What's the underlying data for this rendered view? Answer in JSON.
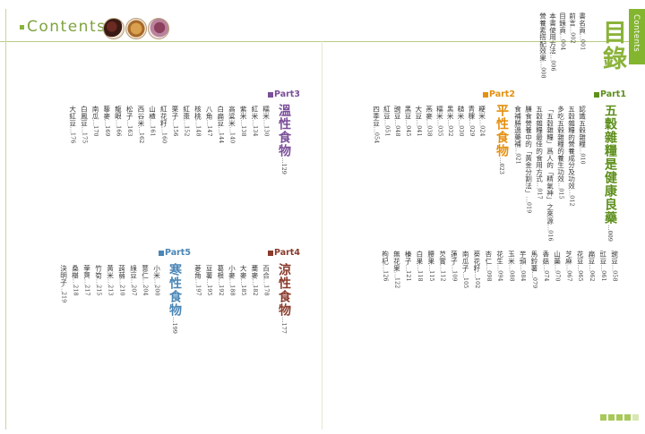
{
  "header": {
    "logo_text": "Contents"
  },
  "side_tab": {
    "label": "Contents"
  },
  "title": "目錄",
  "front_matter": [
    {
      "name": "書名頁",
      "page": "001"
    },
    {
      "name": "前言",
      "page": "002"
    },
    {
      "name": "目錄頁",
      "page": "004"
    },
    {
      "name": "本書使用方法",
      "page": "006"
    },
    {
      "name": "營養素搭配效果",
      "page": "008"
    }
  ],
  "parts": {
    "part1": {
      "label": "Part1",
      "title": "五穀雜糧是健康良藥",
      "page": "009"
    },
    "part2": {
      "label": "Part2",
      "title": "平性食物",
      "page": "023"
    },
    "part3": {
      "label": "Part3",
      "title": "溫性食物",
      "page": "129"
    },
    "part4": {
      "label": "Part4",
      "title": "涼性食物",
      "page": "177"
    },
    "part5": {
      "label": "Part5",
      "title": "寒性食物",
      "page": "199"
    }
  },
  "part1_entries": [
    {
      "name": "認識五穀雜糧",
      "page": "010"
    },
    {
      "name": "五穀雜糧的營養成分及功效",
      "page": "012"
    },
    {
      "name": "多吃五穀雜糧的養生功效",
      "page": "015"
    },
    {
      "name": "「五穀雜糧」爲人的「精氣神」之來源",
      "page": "016"
    },
    {
      "name": "五穀雜糧最佳的食用方式",
      "page": "017"
    },
    {
      "name": "膳食營養中的「黃金分割法」",
      "page": "019"
    },
    {
      "name": "食補勝過藥補",
      "page": "021"
    }
  ],
  "part2_row1": [
    {
      "name": "粳米",
      "page": "024"
    },
    {
      "name": "青稞",
      "page": "029"
    },
    {
      "name": "糙米",
      "page": "030"
    },
    {
      "name": "黑米",
      "page": "032"
    },
    {
      "name": "糯米",
      "page": "035"
    },
    {
      "name": "燕麥",
      "page": "038"
    },
    {
      "name": "大豆",
      "page": "041"
    },
    {
      "name": "黑豆",
      "page": "045"
    },
    {
      "name": "豌豆",
      "page": "048"
    },
    {
      "name": "紅豆",
      "page": "051"
    },
    {
      "name": "四季豆",
      "page": "054"
    }
  ],
  "part2_row2": [
    {
      "name": "豌豆",
      "page": "058"
    },
    {
      "name": "豇豆",
      "page": "061"
    },
    {
      "name": "扁豆",
      "page": "062"
    },
    {
      "name": "花豆",
      "page": "065"
    },
    {
      "name": "芝麻",
      "page": "067"
    },
    {
      "name": "山藥",
      "page": "070"
    },
    {
      "name": "香菇",
      "page": "074"
    },
    {
      "name": "馬鈴薯",
      "page": "079"
    },
    {
      "name": "芋頭",
      "page": "084"
    },
    {
      "name": "玉米",
      "page": "088"
    },
    {
      "name": "花生",
      "page": "094"
    },
    {
      "name": "杏仁",
      "page": "098"
    },
    {
      "name": "葵花籽",
      "page": "102"
    },
    {
      "name": "南瓜子",
      "page": "105"
    },
    {
      "name": "蓮子",
      "page": "109"
    },
    {
      "name": "芡實",
      "page": "112"
    },
    {
      "name": "腰果",
      "page": "115"
    },
    {
      "name": "白果",
      "page": "118"
    },
    {
      "name": "榛子",
      "page": "121"
    },
    {
      "name": "無花果",
      "page": "122"
    },
    {
      "name": "枸杞",
      "page": "126"
    }
  ],
  "part3_entries": [
    {
      "name": "糯米",
      "page": "130"
    },
    {
      "name": "紅米",
      "page": "134"
    },
    {
      "name": "紫米",
      "page": "138"
    },
    {
      "name": "高粱米",
      "page": "140"
    },
    {
      "name": "白扁豆",
      "page": "144"
    },
    {
      "name": "八角",
      "page": "147"
    },
    {
      "name": "核桃",
      "page": "148"
    },
    {
      "name": "紅棗",
      "page": "152"
    },
    {
      "name": "栗子",
      "page": "156"
    },
    {
      "name": "紅花籽",
      "page": "160"
    },
    {
      "name": "山楂",
      "page": "161"
    },
    {
      "name": "西谷米",
      "page": "162"
    },
    {
      "name": "松子",
      "page": "163"
    },
    {
      "name": "龍眼",
      "page": "166"
    },
    {
      "name": "藜麥",
      "page": "169"
    },
    {
      "name": "南瓜",
      "page": "170"
    },
    {
      "name": "白鳳豆",
      "page": "175"
    },
    {
      "name": "大紅豆",
      "page": "176"
    }
  ],
  "part4_entries": [
    {
      "name": "百合",
      "page": "178"
    },
    {
      "name": "蕎麥",
      "page": "182"
    },
    {
      "name": "大麥",
      "page": "185"
    },
    {
      "name": "小麥",
      "page": "188"
    },
    {
      "name": "葛根",
      "page": "192"
    },
    {
      "name": "豆薯",
      "page": "195"
    },
    {
      "name": "菱角",
      "page": "197"
    }
  ],
  "part5_entries": [
    {
      "name": "小米",
      "page": "200"
    },
    {
      "name": "薏仁",
      "page": "204"
    },
    {
      "name": "綠豆",
      "page": "207"
    },
    {
      "name": "蒟蒻",
      "page": "210"
    },
    {
      "name": "黃米",
      "page": "213"
    },
    {
      "name": "竹筍",
      "page": "215"
    },
    {
      "name": "荸薺",
      "page": "217"
    },
    {
      "name": "桑椹",
      "page": "218"
    },
    {
      "name": "決明子",
      "page": "219"
    }
  ],
  "colors": {
    "green": "#8bb33a",
    "part1": "#5e8f1d",
    "part2": "#e4900f",
    "part3": "#7b4f9a",
    "part4": "#8a3b2c",
    "part5": "#4a86b6"
  }
}
